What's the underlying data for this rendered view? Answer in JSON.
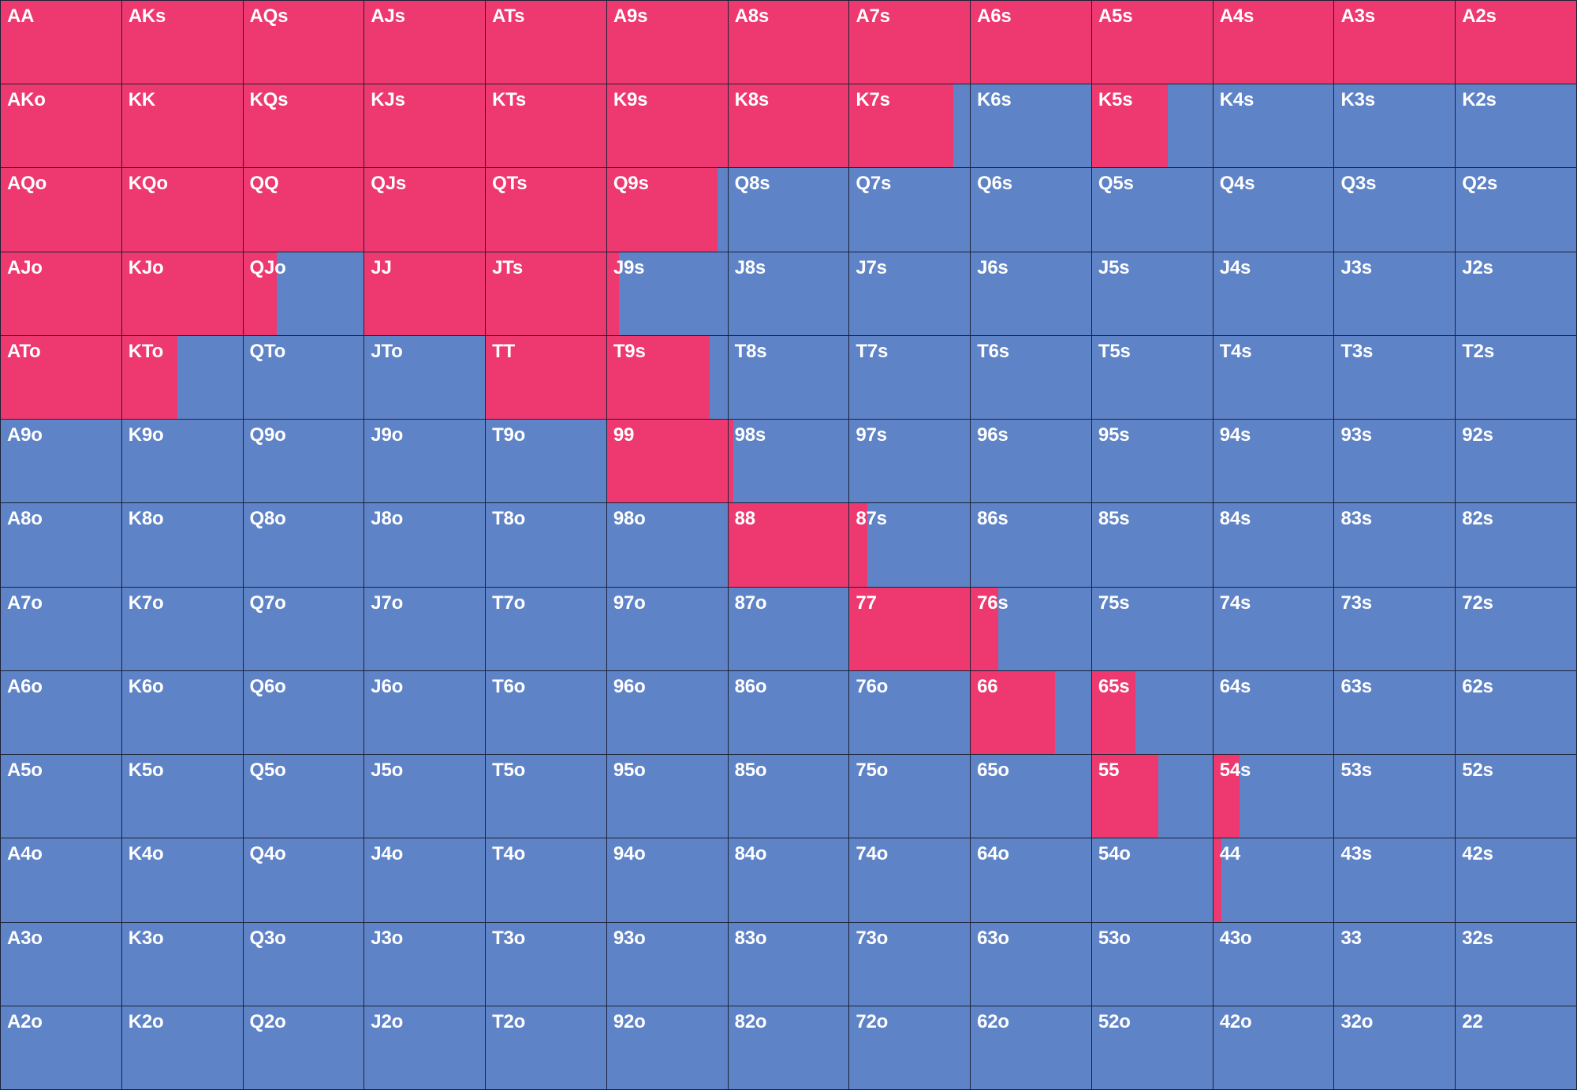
{
  "colors": {
    "raise": "#ed3870",
    "fold": "#5f83c7",
    "grid_line": "#1c2235"
  },
  "ranks": [
    "A",
    "K",
    "Q",
    "J",
    "T",
    "9",
    "8",
    "7",
    "6",
    "5",
    "4",
    "3",
    "2"
  ],
  "raise_frequency": {
    "AA": 1,
    "AKs": 1,
    "AQs": 1,
    "AJs": 1,
    "ATs": 1,
    "A9s": 1,
    "A8s": 1,
    "A7s": 1,
    "A6s": 1,
    "A5s": 1,
    "A4s": 1,
    "A3s": 1,
    "A2s": 1,
    "AKo": 1,
    "KK": 1,
    "KQs": 1,
    "KJs": 1,
    "KTs": 1,
    "K9s": 1,
    "K8s": 1,
    "K7s": 0.86,
    "K5s": 0.63,
    "AQo": 1,
    "KQo": 1,
    "QQ": 1,
    "QJs": 1,
    "QTs": 1,
    "Q9s": 0.92,
    "AJo": 1,
    "KJo": 1,
    "QJo": 0.28,
    "JJ": 1,
    "JTs": 1,
    "J9s": 0.1,
    "ATo": 1,
    "KTo": 0.46,
    "TT": 1,
    "T9s": 0.85,
    "99": 1,
    "98s": 0.04,
    "88": 1,
    "87s": 0.15,
    "77": 1,
    "76s": 0.23,
    "66": 0.7,
    "65s": 0.36,
    "55": 0.55,
    "54s": 0.22,
    "44": 0.07
  }
}
